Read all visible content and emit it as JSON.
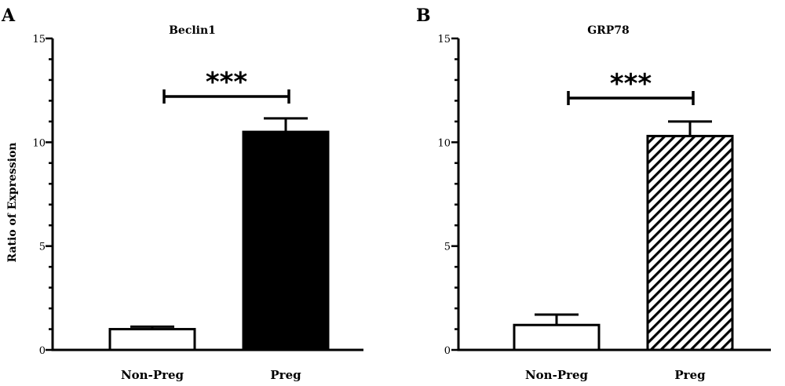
{
  "figure": {
    "y_axis_title": "Ratio of Expression"
  },
  "chart_data": [
    {
      "panel": "A",
      "type": "bar",
      "title": "Beclin1",
      "categories": [
        "Non-Preg",
        "Preg"
      ],
      "values": [
        1.0,
        10.5
      ],
      "error": [
        0.12,
        0.65
      ],
      "fill": [
        "white",
        "solid-black"
      ],
      "ylim": [
        0,
        15
      ],
      "yticks": [
        0,
        5,
        10,
        15
      ],
      "ylabel": "Ratio of Expression",
      "xlabel": "",
      "significance": "***",
      "grid": false
    },
    {
      "panel": "B",
      "type": "bar",
      "title": "GRP78",
      "categories": [
        "Non-Preg",
        "Preg"
      ],
      "values": [
        1.2,
        10.3
      ],
      "error": [
        0.5,
        0.7
      ],
      "fill": [
        "white",
        "diagonal-hatch"
      ],
      "ylim": [
        0,
        15
      ],
      "yticks": [
        0,
        5,
        10,
        15
      ],
      "ylabel": "",
      "xlabel": "",
      "significance": "***",
      "grid": false
    }
  ],
  "colors": {
    "ink": "#000000",
    "background": "#ffffff"
  }
}
